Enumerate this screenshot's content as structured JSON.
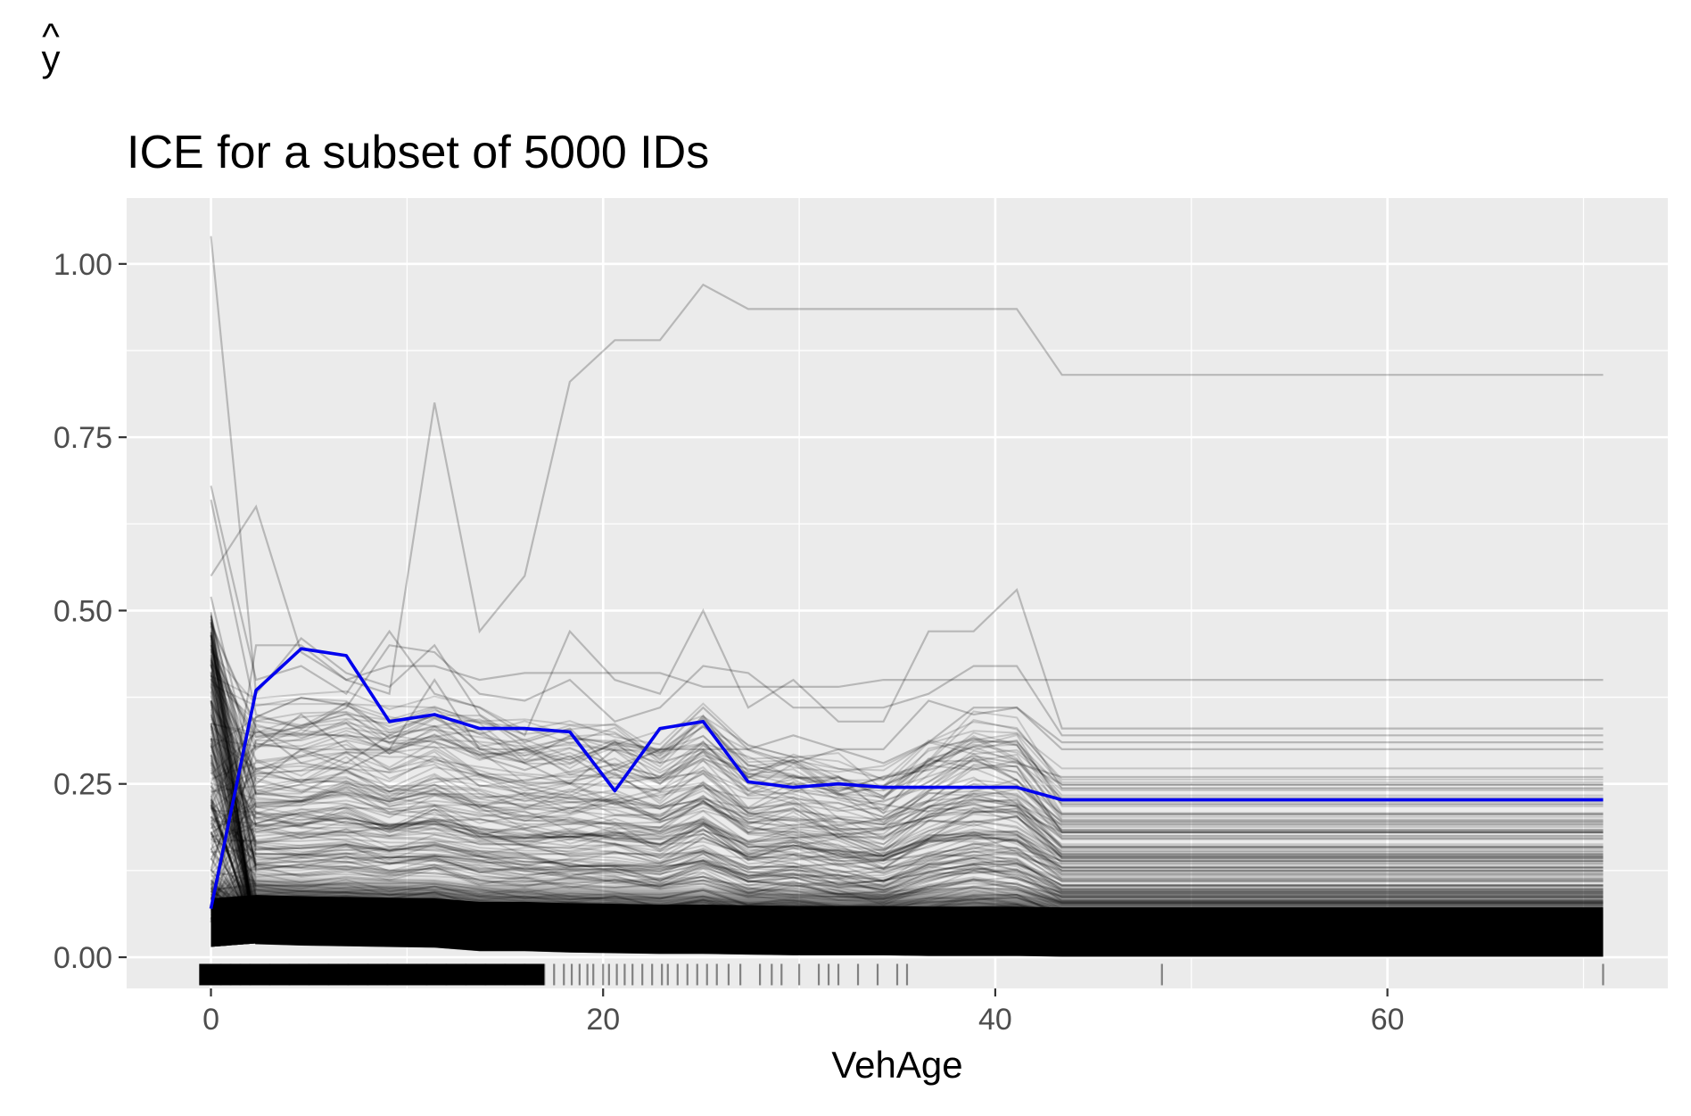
{
  "chart_data": {
    "type": "line",
    "title": "ICE for a subset of 5000 IDs",
    "xlabel": "VehAge",
    "ylabel": "y",
    "ylabel_hat": "^",
    "xlim": [
      -4.3,
      74.3
    ],
    "ylim": [
      -0.045,
      1.095
    ],
    "x_ticks": [
      0,
      20,
      40,
      60
    ],
    "x_tick_labels": [
      "0",
      "20",
      "40",
      "60"
    ],
    "y_ticks": [
      0,
      0.25,
      0.5,
      0.75,
      1.0
    ],
    "y_tick_labels": [
      "0.00",
      "0.25",
      "0.50",
      "0.75",
      "1.00"
    ],
    "x_minor_breaks": [
      10,
      30,
      50,
      70
    ],
    "y_minor_breaks": [
      0.125,
      0.375,
      0.625,
      0.875
    ],
    "grid": true,
    "legend": "none",
    "colors": {
      "panel": "#ebebeb",
      "grid": "#ffffff",
      "ice_lines": "#000000",
      "pd_line": "#0000ee",
      "rug": "#000000",
      "tick_label": "#4d4d4d"
    },
    "x": [
      0,
      2.3,
      4.6,
      6.9,
      9.1,
      11.4,
      13.7,
      16.0,
      18.3,
      20.6,
      22.9,
      25.1,
      27.4,
      29.7,
      32.0,
      34.3,
      36.6,
      38.9,
      41.1,
      43.4,
      71
    ],
    "series": [
      {
        "name": "",
        "role": "partial-dependence",
        "values": [
          0.07,
          0.385,
          0.445,
          0.435,
          0.34,
          0.35,
          0.33,
          0.33,
          0.325,
          0.24,
          0.33,
          0.34,
          0.253,
          0.245,
          0.25,
          0.245,
          0.245,
          0.245,
          0.245,
          0.227,
          0.227
        ]
      }
    ],
    "ice_highlights": [
      {
        "values": [
          1.04,
          0.38,
          0.46,
          0.41,
          0.39,
          0.45,
          0.35,
          0.31,
          0.33,
          0.27,
          0.3,
          0.3,
          0.26,
          0.24,
          0.23,
          0.22,
          0.21,
          0.22,
          0.21,
          0.18,
          0.18
        ]
      },
      {
        "values": [
          0.05,
          0.45,
          0.45,
          0.4,
          0.38,
          0.8,
          0.47,
          0.55,
          0.83,
          0.89,
          0.89,
          0.97,
          0.935,
          0.935,
          0.935,
          0.935,
          0.935,
          0.935,
          0.935,
          0.84,
          0.84
        ]
      },
      {
        "values": [
          0.55,
          0.65,
          0.44,
          0.4,
          0.42,
          0.42,
          0.4,
          0.41,
          0.41,
          0.41,
          0.41,
          0.39,
          0.39,
          0.39,
          0.39,
          0.4,
          0.4,
          0.4,
          0.4,
          0.4,
          0.4
        ]
      },
      {
        "values": [
          0.68,
          0.4,
          0.42,
          0.38,
          0.47,
          0.38,
          0.36,
          0.32,
          0.47,
          0.4,
          0.38,
          0.5,
          0.36,
          0.4,
          0.34,
          0.34,
          0.47,
          0.47,
          0.53,
          0.33,
          0.33
        ]
      },
      {
        "values": [
          0.66,
          0.35,
          0.33,
          0.36,
          0.45,
          0.44,
          0.38,
          0.37,
          0.4,
          0.34,
          0.36,
          0.42,
          0.41,
          0.36,
          0.36,
          0.36,
          0.38,
          0.42,
          0.42,
          0.32,
          0.32
        ]
      },
      {
        "values": [
          0.45,
          0.3,
          0.35,
          0.3,
          0.3,
          0.4,
          0.3,
          0.3,
          0.28,
          0.31,
          0.3,
          0.36,
          0.3,
          0.28,
          0.3,
          0.28,
          0.31,
          0.36,
          0.36,
          0.3,
          0.3
        ]
      },
      {
        "values": [
          0.52,
          0.25,
          0.3,
          0.28,
          0.32,
          0.35,
          0.3,
          0.28,
          0.25,
          0.3,
          0.28,
          0.3,
          0.3,
          0.32,
          0.3,
          0.3,
          0.37,
          0.35,
          0.36,
          0.31,
          0.31
        ]
      },
      {
        "values": [
          0.48,
          0.33,
          0.28,
          0.27,
          0.3,
          0.32,
          0.29,
          0.27,
          0.29,
          0.25,
          0.26,
          0.31,
          0.25,
          0.25,
          0.24,
          0.26,
          0.27,
          0.29,
          0.28,
          0.26,
          0.26
        ]
      }
    ],
    "ice_band": {
      "count": 5000,
      "upper_envelope": [
        0.55,
        0.36,
        0.36,
        0.37,
        0.35,
        0.37,
        0.34,
        0.33,
        0.33,
        0.33,
        0.31,
        0.35,
        0.29,
        0.3,
        0.28,
        0.26,
        0.31,
        0.34,
        0.33,
        0.25,
        0.25
      ],
      "lower_edge": [
        0.015,
        0.02,
        0.018,
        0.017,
        0.016,
        0.015,
        0.01,
        0.01,
        0.008,
        0.007,
        0.006,
        0.006,
        0.005,
        0.004,
        0.004,
        0.004,
        0.003,
        0.003,
        0.003,
        0.002,
        0.002
      ]
    },
    "rug": {
      "y": -0.025,
      "positions": [
        0,
        0.5,
        1,
        1.5,
        2,
        3,
        4,
        5,
        6,
        7,
        8,
        9,
        10,
        11,
        12,
        13,
        14,
        15,
        16,
        17,
        17.5,
        18,
        18.4,
        18.8,
        19.2,
        19.5,
        20,
        20.3,
        20.7,
        21.1,
        21.5,
        22,
        22.5,
        23,
        23.3,
        23.8,
        24.3,
        24.8,
        25.3,
        25.8,
        26.4,
        27,
        28,
        28.6,
        29.1,
        30,
        31,
        31.5,
        32,
        33,
        34,
        35,
        35.5,
        48.5,
        71
      ]
    }
  }
}
